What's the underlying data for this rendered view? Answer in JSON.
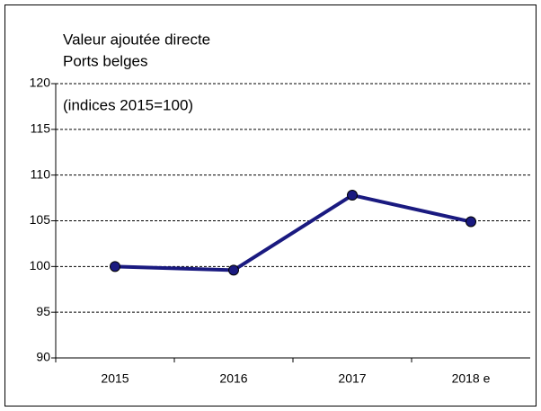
{
  "chart_data": {
    "type": "line",
    "title": "Valeur ajoutée directe",
    "subtitle": "Ports belges",
    "annotation": "(indices 2015=100)",
    "categories": [
      "2015",
      "2016",
      "2017",
      "2018 e"
    ],
    "values": [
      100,
      99.6,
      107.8,
      104.9
    ],
    "color": "#1a1a80",
    "ylim": [
      90,
      120
    ],
    "yticks": [
      90,
      95,
      100,
      105,
      110,
      115,
      120
    ],
    "grid": true
  }
}
